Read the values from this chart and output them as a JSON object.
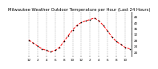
{
  "title": "Milwaukee Weather Outdoor Temperature per Hour (Last 24 Hours)",
  "hours": [
    0,
    1,
    2,
    3,
    4,
    5,
    6,
    7,
    8,
    9,
    10,
    11,
    12,
    13,
    14,
    15,
    16,
    17,
    18,
    19,
    20,
    21,
    22,
    23
  ],
  "temps": [
    28,
    26,
    24,
    22,
    21,
    20,
    21,
    23,
    27,
    31,
    35,
    38,
    40,
    41,
    42,
    43,
    41,
    38,
    34,
    30,
    27,
    25,
    23,
    22
  ],
  "line_color": "#ff0000",
  "marker_color": "#000000",
  "bg_color": "#ffffff",
  "grid_color": "#888888",
  "ylim_min": 17,
  "ylim_max": 47,
  "yticks": [
    20,
    24,
    28,
    32,
    36,
    40,
    44
  ],
  "ytick_labels": [
    "20",
    "24",
    "28",
    "32",
    "36",
    "40",
    "44"
  ],
  "xtick_positions": [
    0,
    2,
    4,
    6,
    8,
    10,
    12,
    14,
    16,
    18,
    20,
    22
  ],
  "xtick_labels": [
    "12",
    "2",
    "4",
    "6",
    "8",
    "10",
    "12",
    "2",
    "4",
    "6",
    "8",
    "10"
  ],
  "title_fontsize": 3.8,
  "tick_fontsize": 3.0,
  "line_width": 0.7,
  "marker_size": 1.8
}
